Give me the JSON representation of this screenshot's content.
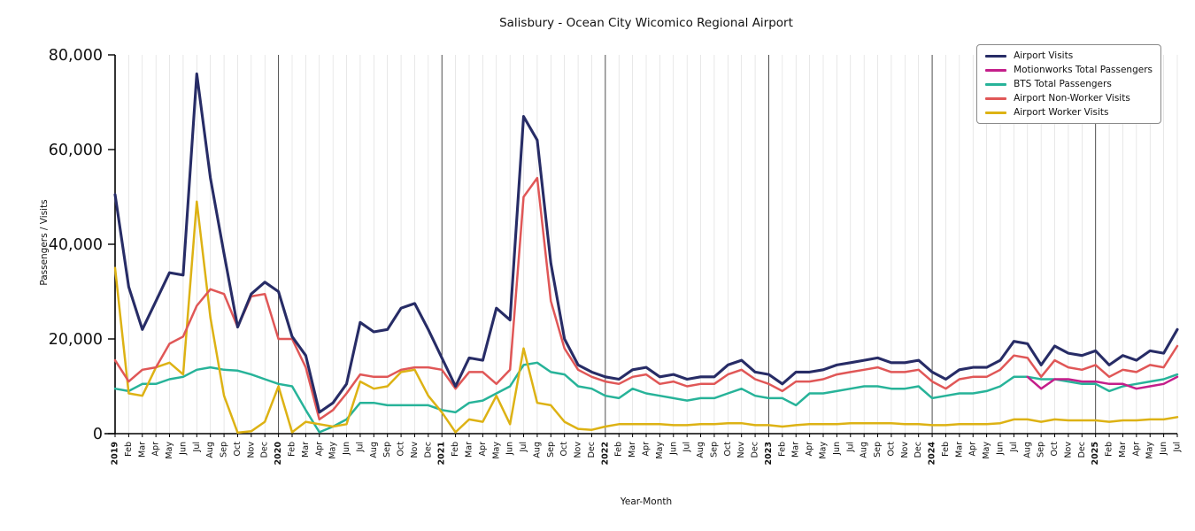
{
  "title": "Salisbury - Ocean City Wicomico Regional Airport",
  "chart_data": {
    "type": "line",
    "title": "Salisbury - Ocean City Wicomico Regional Airport",
    "xlabel": "Year-Month",
    "ylabel": "Passengers / Visits",
    "ylim": [
      0,
      80000
    ],
    "yticks": [
      0,
      20000,
      40000,
      60000,
      80000
    ],
    "grid": "vertical-monthly, dark line at each year start",
    "legend_position": "upper right",
    "x_tick_labels": [
      "2019",
      "Feb",
      "Mar",
      "Apr",
      "May",
      "Jun",
      "Jul",
      "Aug",
      "Sep",
      "Oct",
      "Nov",
      "Dec",
      "2020",
      "Feb",
      "Mar",
      "Apr",
      "May",
      "Jun",
      "Jul",
      "Aug",
      "Sep",
      "Oct",
      "Nov",
      "Dec",
      "2021",
      "Feb",
      "Mar",
      "Apr",
      "May",
      "Jun",
      "Jul",
      "Aug",
      "Sep",
      "Oct",
      "Nov",
      "Dec",
      "2022",
      "Feb",
      "Mar",
      "Apr",
      "May",
      "Jun",
      "Jul",
      "Aug",
      "Sep",
      "Oct",
      "Nov",
      "Dec",
      "2023",
      "Feb",
      "Mar",
      "Apr",
      "May",
      "Jun",
      "Jul",
      "Aug",
      "Sep",
      "Oct",
      "Nov",
      "Dec",
      "2024",
      "Feb",
      "Mar",
      "Apr",
      "May",
      "Jun",
      "Jul",
      "Aug",
      "Sep",
      "Oct",
      "Nov",
      "Dec",
      "2025",
      "Feb",
      "Mar",
      "Apr",
      "May",
      "Jun",
      "Jul"
    ],
    "series": [
      {
        "name": "Airport Visits",
        "color": "#272c66",
        "values": [
          50500,
          31000,
          22000,
          28000,
          34000,
          33500,
          76000,
          54000,
          38000,
          22500,
          29500,
          32000,
          30000,
          20500,
          16500,
          4500,
          6500,
          10500,
          23500,
          21500,
          22000,
          26500,
          27500,
          22000,
          16000,
          10000,
          16000,
          15500,
          26500,
          24000,
          67000,
          62000,
          36000,
          20000,
          14500,
          13000,
          12000,
          11500,
          13500,
          14000,
          12000,
          12500,
          11500,
          12000,
          12000,
          14500,
          15500,
          13000,
          12500,
          10500,
          13000,
          13000,
          13500,
          14500,
          15000,
          15500,
          16000,
          15000,
          15000,
          15500,
          13000,
          11500,
          13500,
          14000,
          14000,
          15500,
          19500,
          19000,
          14500,
          18500,
          17000,
          16500,
          17500,
          14500,
          16500,
          15500,
          17500,
          17000,
          22000
        ]
      },
      {
        "name": "Motionworks Total Passengers",
        "color": "#c41e8a",
        "values": [
          null,
          null,
          null,
          null,
          null,
          null,
          null,
          null,
          null,
          null,
          null,
          null,
          null,
          null,
          null,
          null,
          null,
          null,
          null,
          null,
          null,
          null,
          null,
          null,
          null,
          null,
          null,
          null,
          null,
          null,
          null,
          null,
          null,
          null,
          null,
          null,
          null,
          null,
          null,
          null,
          null,
          null,
          null,
          null,
          null,
          null,
          null,
          null,
          null,
          null,
          null,
          null,
          null,
          null,
          null,
          null,
          null,
          null,
          null,
          null,
          null,
          null,
          null,
          null,
          null,
          null,
          null,
          12000,
          9500,
          11500,
          11500,
          11000,
          11000,
          10500,
          10500,
          9500,
          10000,
          10500,
          12000
        ]
      },
      {
        "name": "BTS Total Passengers",
        "color": "#27b399",
        "values": [
          9500,
          9000,
          10500,
          10500,
          11500,
          12000,
          13500,
          14000,
          13500,
          13300,
          12500,
          11500,
          10500,
          10000,
          5000,
          300,
          1500,
          3000,
          6500,
          6500,
          6000,
          6000,
          6000,
          6000,
          5000,
          4500,
          6500,
          7000,
          8500,
          10000,
          14500,
          15000,
          13000,
          12500,
          10000,
          9500,
          8000,
          7500,
          9500,
          8500,
          8000,
          7500,
          7000,
          7500,
          7500,
          8500,
          9500,
          8000,
          7500,
          7500,
          6000,
          8500,
          8500,
          9000,
          9500,
          10000,
          10000,
          9500,
          9500,
          10000,
          7500,
          8000,
          8500,
          8500,
          9000,
          10000,
          12000,
          12000,
          11500,
          11500,
          11000,
          10500,
          10500,
          9000,
          10000,
          10500,
          11000,
          11500,
          12500
        ]
      },
      {
        "name": "Airport Non-Worker Visits",
        "color": "#e05757",
        "values": [
          15500,
          11000,
          13500,
          14000,
          19000,
          20500,
          27000,
          30500,
          29500,
          22500,
          29000,
          29500,
          20000,
          20000,
          14000,
          3000,
          5000,
          8500,
          12500,
          12000,
          12000,
          13500,
          14000,
          14000,
          13500,
          9500,
          13000,
          13000,
          10500,
          13500,
          50000,
          54000,
          28000,
          18000,
          13500,
          12000,
          11000,
          10500,
          12000,
          12500,
          10500,
          11000,
          10000,
          10500,
          10500,
          12500,
          13500,
          11500,
          10500,
          9000,
          11000,
          11000,
          11500,
          12500,
          13000,
          13500,
          14000,
          13000,
          13000,
          13500,
          11000,
          9500,
          11500,
          12000,
          12000,
          13500,
          16500,
          16000,
          12000,
          15500,
          14000,
          13500,
          14500,
          12000,
          13500,
          13000,
          14500,
          14000,
          18500
        ]
      },
      {
        "name": "Airport Worker Visits",
        "color": "#ddb214",
        "values": [
          35000,
          8500,
          8000,
          14000,
          15000,
          12500,
          49000,
          24500,
          8000,
          200,
          500,
          2500,
          10000,
          300,
          2500,
          2000,
          1500,
          2000,
          11000,
          9500,
          10000,
          13000,
          13500,
          8000,
          4500,
          300,
          3000,
          2500,
          8000,
          2000,
          18000,
          6500,
          6000,
          2500,
          1000,
          800,
          1500,
          2000,
          2000,
          2000,
          2000,
          1800,
          1800,
          2000,
          2000,
          2200,
          2200,
          1800,
          1800,
          1500,
          1800,
          2000,
          2000,
          2000,
          2200,
          2200,
          2200,
          2200,
          2000,
          2000,
          1800,
          1800,
          2000,
          2000,
          2000,
          2200,
          3000,
          3000,
          2500,
          3000,
          2800,
          2800,
          2800,
          2500,
          2800,
          2800,
          3000,
          3000,
          3500
        ]
      }
    ]
  }
}
